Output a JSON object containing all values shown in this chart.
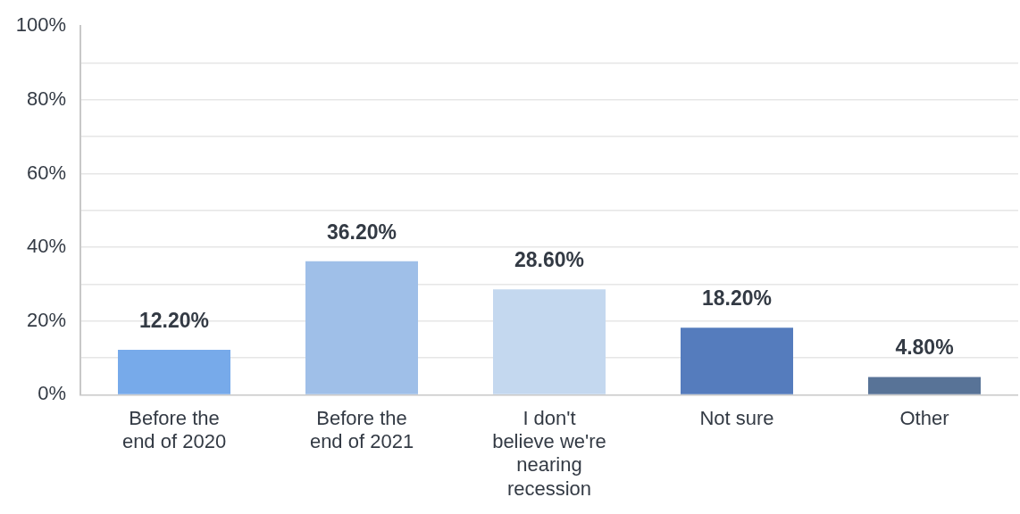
{
  "chart_data": {
    "type": "bar",
    "categories": [
      "Before the end of 2020",
      "Before the end of 2021",
      "I don't believe we're nearing recession",
      "Not sure",
      "Other"
    ],
    "values": [
      12.2,
      36.2,
      28.6,
      18.2,
      4.8
    ],
    "colors": [
      "#77aaea",
      "#9fbfe8",
      "#c4d8ef",
      "#557cbd",
      "#587397"
    ],
    "value_labels": [
      "12.20%",
      "36.20%",
      "28.60%",
      "18.20%",
      "4.80%"
    ],
    "ylim": [
      0,
      100
    ],
    "yticks": [
      {
        "value": 0,
        "label": "0%"
      },
      {
        "value": 10,
        "label": null
      },
      {
        "value": 20,
        "label": "20%"
      },
      {
        "value": 30,
        "label": null
      },
      {
        "value": 40,
        "label": "40%"
      },
      {
        "value": 50,
        "label": null
      },
      {
        "value": 60,
        "label": "60%"
      },
      {
        "value": 70,
        "label": null
      },
      {
        "value": 80,
        "label": "80%"
      },
      {
        "value": 90,
        "label": null
      },
      {
        "value": 100,
        "label": "100%"
      }
    ],
    "grid": "y"
  }
}
